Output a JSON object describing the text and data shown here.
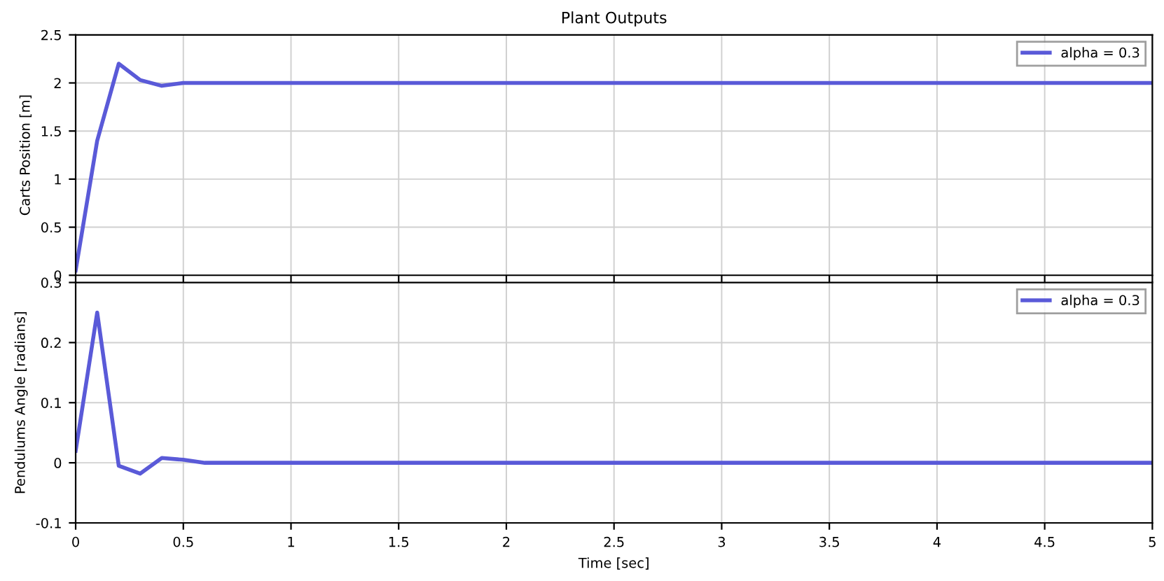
{
  "chart_data": [
    {
      "type": "line",
      "title": "Plant Outputs",
      "ylabel": "Carts Position [m]",
      "xlim": [
        0,
        5
      ],
      "ylim": [
        0,
        2.5
      ],
      "xticks": [
        0,
        0.5,
        1,
        1.5,
        2,
        2.5,
        3,
        3.5,
        4,
        4.5,
        5
      ],
      "yticks": [
        0,
        0.5,
        1,
        1.5,
        2,
        2.5
      ],
      "tick_labels": "y",
      "grid": true,
      "legend": "top right",
      "series": [
        {
          "name": "alpha = 0.3",
          "color": "#5a5ad8",
          "x": [
            0,
            0.1,
            0.2,
            0.3,
            0.4,
            0.5,
            5
          ],
          "values": [
            0.05,
            1.4,
            2.2,
            2.03,
            1.97,
            2.0,
            2.0
          ]
        }
      ]
    },
    {
      "type": "line",
      "xlabel": "Time [sec]",
      "ylabel": "Pendulums Angle [radians]",
      "xlim": [
        0,
        5
      ],
      "ylim": [
        -0.1,
        0.3
      ],
      "xticks": [
        0,
        0.5,
        1,
        1.5,
        2,
        2.5,
        3,
        3.5,
        4,
        4.5,
        5
      ],
      "yticks": [
        -0.1,
        0,
        0.1,
        0.2,
        0.3
      ],
      "grid": true,
      "legend": "top right",
      "series": [
        {
          "name": "alpha = 0.3",
          "color": "#5a5ad8",
          "x": [
            0,
            0.1,
            0.2,
            0.3,
            0.4,
            0.5,
            0.6,
            5
          ],
          "values": [
            0.02,
            0.25,
            -0.005,
            -0.018,
            0.008,
            0.005,
            0.0,
            0.0
          ]
        }
      ]
    }
  ]
}
